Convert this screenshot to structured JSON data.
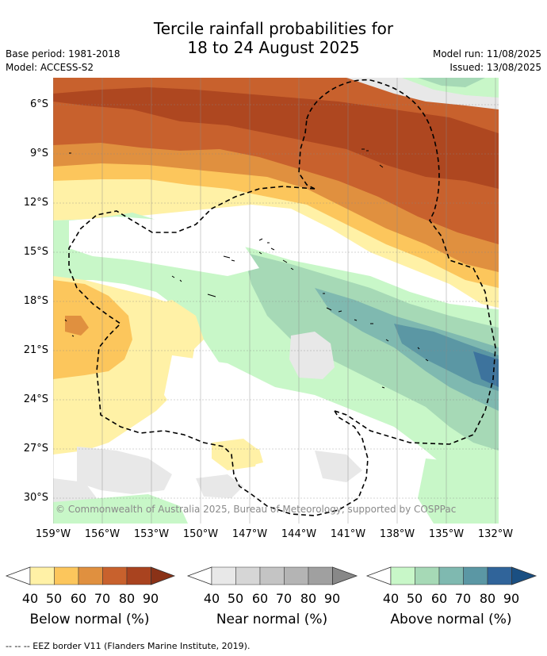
{
  "title_line1": "Tercile rainfall probabilities for",
  "title_line2": "18 to 24 August 2025",
  "base_period": "Base period: 1981-2018",
  "model": "Model: ACCESS-S2",
  "model_run": "Model run: 11/08/2025",
  "issued": "Issued: 13/08/2025",
  "lat_labels": [
    "6°S",
    "9°S",
    "12°S",
    "15°S",
    "18°S",
    "21°S",
    "24°S",
    "27°S",
    "30°S"
  ],
  "lon_labels": [
    "159°W",
    "156°W",
    "153°W",
    "150°W",
    "147°W",
    "144°W",
    "141°W",
    "138°W",
    "135°W",
    "132°W"
  ],
  "copyright": "© Commonwealth of Australia 2025, Bureau of Meteorology, supported by COSPPac",
  "colorbars": [
    {
      "label": "Below normal (%)",
      "ticks": [
        "40",
        "50",
        "60",
        "70",
        "80",
        "90"
      ],
      "colors": [
        "#fff1a6",
        "#fcc65c",
        "#e0903f",
        "#c8612d",
        "#a9431f",
        "#8a3217"
      ]
    },
    {
      "label": "Near normal (%)",
      "ticks": [
        "40",
        "50",
        "60",
        "70",
        "80",
        "90"
      ],
      "colors": [
        "#e8e8e8",
        "#d6d6d6",
        "#c4c4c4",
        "#b4b4b4",
        "#a0a0a0",
        "#888888"
      ]
    },
    {
      "label": "Above normal (%)",
      "ticks": [
        "40",
        "50",
        "60",
        "70",
        "80",
        "90"
      ],
      "colors": [
        "#c8f7c8",
        "#a6d9b6",
        "#7fb9b0",
        "#5b97a4",
        "#30649a",
        "#1a4f82"
      ]
    }
  ],
  "footer": "--  --  -- EEZ border V11 (Flanders Marine Institute, 2019)."
}
